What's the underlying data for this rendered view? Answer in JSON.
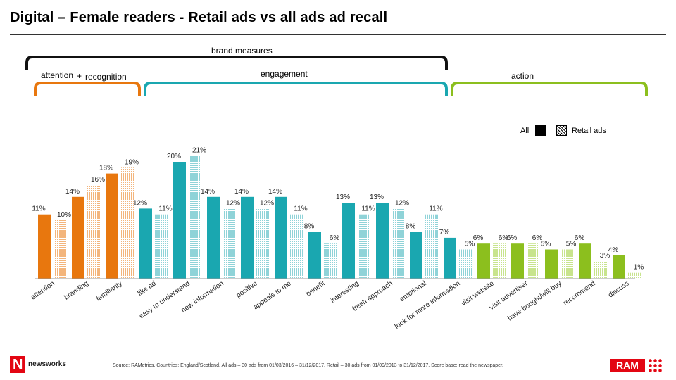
{
  "title": "Digital – Female readers - Retail ads vs all ads ad recall",
  "groups": {
    "brand_measures": "brand measures",
    "attention": "attention",
    "plus": "+",
    "recognition": "recognition",
    "engagement": "engagement",
    "action": "action"
  },
  "colors": {
    "attention": "#e8770e",
    "engagement": "#1aa7b0",
    "action": "#8cbf1e",
    "brand_bracket": "#111111"
  },
  "legend": {
    "all": "All",
    "retail": "Retail ads"
  },
  "chart_data": {
    "type": "bar",
    "categories": [
      "attention",
      "branding",
      "familiarity",
      "like ad",
      "easy to understand",
      "new information",
      "positive",
      "appeals to me",
      "benefit",
      "interesting",
      "fresh approach",
      "emotional",
      "look for more information",
      "visit website",
      "visit advertiser",
      "have bought/will buy",
      "recommend",
      "discuss"
    ],
    "category_groups": [
      "attention",
      "attention",
      "attention",
      "engagement",
      "engagement",
      "engagement",
      "engagement",
      "engagement",
      "engagement",
      "engagement",
      "engagement",
      "engagement",
      "engagement",
      "action",
      "action",
      "action",
      "action",
      "action"
    ],
    "series": [
      {
        "name": "All",
        "values": [
          11,
          14,
          18,
          12,
          20,
          14,
          14,
          14,
          8,
          13,
          13,
          8,
          7,
          6,
          6,
          5,
          6,
          4
        ]
      },
      {
        "name": "Retail ads",
        "values": [
          10,
          16,
          19,
          11,
          21,
          12,
          12,
          11,
          6,
          11,
          12,
          11,
          5,
          6,
          6,
          5,
          3,
          1
        ]
      }
    ],
    "labels": {
      "all": [
        "11%",
        "14%",
        "18%",
        "12%",
        "20%",
        "14%",
        "14%",
        "14%",
        "8%",
        "13%",
        "13%",
        "8%",
        "7%",
        "6%",
        "6%",
        "5%",
        "6%",
        "4%"
      ],
      "retail": [
        "10%",
        "16%",
        "19%",
        "11%",
        "21%",
        "12%",
        "12%",
        "11%",
        "6%",
        "11%",
        "12%",
        "11%",
        "5%",
        "6%",
        "6%",
        "5%",
        "3%",
        "1%"
      ]
    },
    "ylim": [
      0,
      22
    ]
  },
  "source": "Source: RAMetrics. Countries: England/Scotland. All ads – 30 ads from 01/03/2016 – 31/12/2017. Retail – 30 ads from 01/09/2013 to 31/12/2017. Score base: read the newspaper.",
  "logos": {
    "left": "newsworks",
    "right": "RAM"
  }
}
